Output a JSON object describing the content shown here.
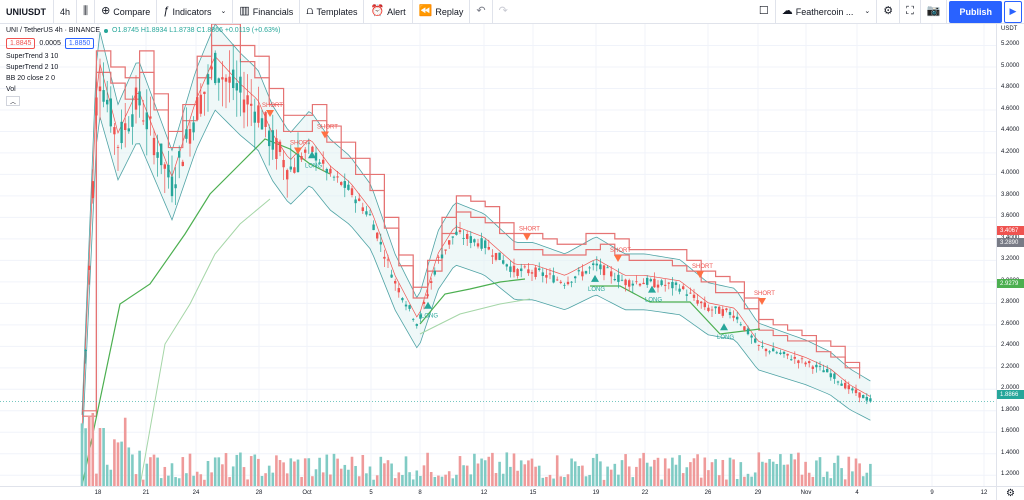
{
  "toolbar": {
    "symbol": "UNIUSDT",
    "interval": "4h",
    "compare": "Compare",
    "indicators": "Indicators",
    "financials": "Financials",
    "templates": "Templates",
    "alert": "Alert",
    "replay": "Replay",
    "layout_name": "Feathercoin ...",
    "publish": "Publish"
  },
  "legend": {
    "title": "UNI / TetherUS  4h · BINANCE",
    "ohlc": "O1.8745  H1.8934  L1.8738  C1.8866  +0.0119 (+0.63%)",
    "bid": "1.8845",
    "spread": "0.0005",
    "ask": "1.8850",
    "indicators": [
      "SuperTrend 3 10",
      "SuperTrend 2 10",
      "BB 20 close 2 0",
      "Vol"
    ]
  },
  "price_axis": {
    "currency": "USDT",
    "ticks": [
      "5.2000",
      "5.0000",
      "4.8000",
      "4.6000",
      "4.4000",
      "4.2000",
      "4.0000",
      "3.8000",
      "3.6000",
      "3.4000",
      "3.2000",
      "3.0000",
      "2.8000",
      "2.6000",
      "2.4000",
      "2.2000",
      "2.0000",
      "1.8000",
      "1.6000",
      "1.4000",
      "1.2000"
    ],
    "tags": {
      "supertrend_red": "3.4067",
      "upper_gray": "3.2890",
      "supertrend_green": "2.9279",
      "last": "1.8866"
    }
  },
  "time_axis": {
    "labels": [
      "18",
      "21",
      "24",
      "28",
      "Oct",
      "5",
      "8",
      "12",
      "15",
      "19",
      "22",
      "26",
      "29",
      "Nov",
      "4",
      "9",
      "12"
    ]
  },
  "signals": {
    "short_label": "SHORT",
    "long_label": "LONG"
  },
  "colors": {
    "up": "#26a69a",
    "down": "#ef5350",
    "supertrend_up": "#4caf50",
    "supertrend_up_light": "#a5d6a7",
    "supertrend_down": "#e57373",
    "bb": "#4fa3a5",
    "accent": "#2962ff"
  },
  "chart_data": {
    "type": "candlestick",
    "symbol": "UNI / TetherUS",
    "interval": "4h",
    "y_range": [
      1.1,
      5.4
    ],
    "close_path": [
      {
        "date": "18",
        "close": 1.6
      },
      {
        "date": "19",
        "close": 5.0
      },
      {
        "date": "20",
        "close": 4.3
      },
      {
        "date": "21",
        "close": 4.7
      },
      {
        "date": "23",
        "close": 3.9
      },
      {
        "date": "24",
        "close": 4.6
      },
      {
        "date": "25",
        "close": 5.0
      },
      {
        "date": "26",
        "close": 4.75
      },
      {
        "date": "27",
        "close": 4.6
      },
      {
        "date": "28",
        "close": 4.3
      },
      {
        "date": "29",
        "close": 4.05
      },
      {
        "date": "Oct",
        "close": 4.25
      },
      {
        "date": "2",
        "close": 4.0
      },
      {
        "date": "3",
        "close": 3.85
      },
      {
        "date": "5",
        "close": 3.6
      },
      {
        "date": "7",
        "close": 3.0
      },
      {
        "date": "8",
        "close": 2.6
      },
      {
        "date": "9",
        "close": 3.2
      },
      {
        "date": "10",
        "close": 3.45
      },
      {
        "date": "12",
        "close": 3.35
      },
      {
        "date": "14",
        "close": 3.1
      },
      {
        "date": "15",
        "close": 3.1
      },
      {
        "date": "17",
        "close": 3.0
      },
      {
        "date": "19",
        "close": 3.15
      },
      {
        "date": "21",
        "close": 3.0
      },
      {
        "date": "22",
        "close": 3.0
      },
      {
        "date": "24",
        "close": 2.95
      },
      {
        "date": "26",
        "close": 2.75
      },
      {
        "date": "28",
        "close": 2.7
      },
      {
        "date": "29",
        "close": 2.4
      },
      {
        "date": "31",
        "close": 2.3
      },
      {
        "date": "Nov",
        "close": 2.25
      },
      {
        "date": "2",
        "close": 2.15
      },
      {
        "date": "3",
        "close": 2.0
      },
      {
        "date": "4",
        "close": 1.8866
      }
    ],
    "signals": [
      {
        "type": "SHORT",
        "date": "27",
        "price": 4.6
      },
      {
        "type": "SHORT",
        "date": "29",
        "price": 4.25
      },
      {
        "type": "SHORT",
        "date": "Oct",
        "price": 4.4
      },
      {
        "type": "LONG",
        "date": "Oct",
        "price": 4.15
      },
      {
        "type": "LONG",
        "date": "8",
        "price": 2.75
      },
      {
        "type": "SHORT",
        "date": "15",
        "price": 3.45
      },
      {
        "type": "LONG",
        "date": "19",
        "price": 3.0
      },
      {
        "type": "SHORT",
        "date": "20",
        "price": 3.25
      },
      {
        "type": "LONG",
        "date": "23",
        "price": 2.9
      },
      {
        "type": "SHORT",
        "date": "25",
        "price": 3.1
      },
      {
        "type": "LONG",
        "date": "27",
        "price": 2.55
      },
      {
        "type": "SHORT",
        "date": "30",
        "price": 2.85
      }
    ],
    "last_price": 1.8866
  }
}
